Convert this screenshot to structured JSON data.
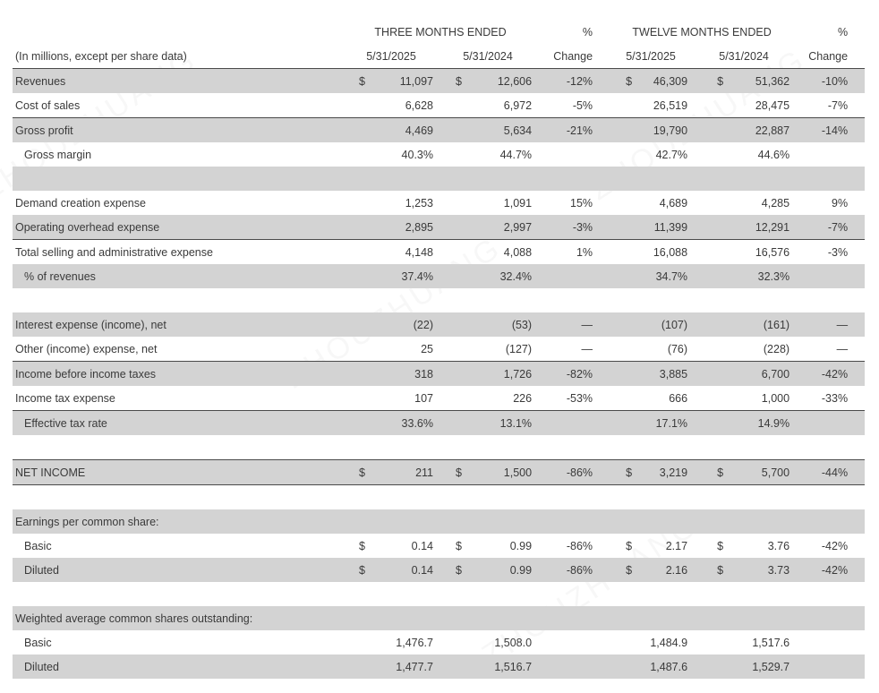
{
  "watermark": "ZHOUZHUANG",
  "colors": {
    "row_shade": "#d3d3d3",
    "rule": "#4a4a4a",
    "text": "#3a3a3a"
  },
  "table": {
    "unit_note": "(In millions, except per share data)",
    "three_months_header": "THREE MONTHS ENDED",
    "twelve_months_header": "TWELVE MONTHS ENDED",
    "pct_header": "%",
    "change_header": "Change",
    "dates": [
      "5/31/2025",
      "5/31/2024",
      "5/31/2025",
      "5/31/2024"
    ],
    "rows": [
      {
        "label": "Revenues",
        "shade": true,
        "cells": [
          "$",
          "11,097",
          "$",
          "12,606",
          "-12%",
          "$",
          "46,309",
          "$",
          "51,362",
          "-10%"
        ]
      },
      {
        "label": "Cost of sales",
        "bottom": true,
        "cells": [
          "",
          "6,628",
          "",
          "6,972",
          "-5%",
          "",
          "26,519",
          "",
          "28,475",
          "-7%"
        ]
      },
      {
        "label": "Gross profit",
        "shade": true,
        "cells": [
          "",
          "4,469",
          "",
          "5,634",
          "-21%",
          "",
          "19,790",
          "",
          "22,887",
          "-14%"
        ]
      },
      {
        "label": "Gross margin",
        "indent": true,
        "cells": [
          "",
          "40.3%",
          "",
          "44.7%",
          "",
          "",
          "42.7%",
          "",
          "44.6%",
          ""
        ]
      },
      {
        "type": "blank",
        "shade": true
      },
      {
        "label": "Demand creation expense",
        "cells": [
          "",
          "1,253",
          "",
          "1,091",
          "15%",
          "",
          "4,689",
          "",
          "4,285",
          "9%"
        ]
      },
      {
        "label": "Operating overhead expense",
        "shade": true,
        "bottom": true,
        "cells": [
          "",
          "2,895",
          "",
          "2,997",
          "-3%",
          "",
          "11,399",
          "",
          "12,291",
          "-7%"
        ]
      },
      {
        "label": "Total selling and administrative expense",
        "cells": [
          "",
          "4,148",
          "",
          "4,088",
          "1%",
          "",
          "16,088",
          "",
          "16,576",
          "-3%"
        ]
      },
      {
        "label": "% of revenues",
        "indent": true,
        "shade": true,
        "cells": [
          "",
          "37.4%",
          "",
          "32.4%",
          "",
          "",
          "34.7%",
          "",
          "32.3%",
          ""
        ]
      },
      {
        "type": "blank"
      },
      {
        "label": "Interest expense (income), net",
        "shade": true,
        "cells": [
          "",
          "(22)",
          "",
          "(53)",
          "—",
          "",
          "(107)",
          "",
          "(161)",
          "—"
        ]
      },
      {
        "label": "Other (income) expense, net",
        "bottom": true,
        "cells": [
          "",
          "25",
          "",
          "(127)",
          "—",
          "",
          "(76)",
          "",
          "(228)",
          "—"
        ]
      },
      {
        "label": "Income before income taxes",
        "shade": true,
        "cells": [
          "",
          "318",
          "",
          "1,726",
          "-82%",
          "",
          "3,885",
          "",
          "6,700",
          "-42%"
        ]
      },
      {
        "label": "Income tax expense",
        "bottom": true,
        "cells": [
          "",
          "107",
          "",
          "226",
          "-53%",
          "",
          "666",
          "",
          "1,000",
          "-33%"
        ]
      },
      {
        "label": "Effective tax rate",
        "indent": true,
        "shade": true,
        "cells": [
          "",
          "33.6%",
          "",
          "13.1%",
          "",
          "",
          "17.1%",
          "",
          "14.9%",
          ""
        ]
      },
      {
        "type": "blank"
      },
      {
        "label": "NET INCOME",
        "shade": true,
        "top": true,
        "bottom": true,
        "cells": [
          "$",
          "211",
          "$",
          "1,500",
          "-86%",
          "$",
          "3,219",
          "$",
          "5,700",
          "-44%"
        ]
      },
      {
        "type": "blank"
      },
      {
        "type": "section",
        "label": "Earnings per common share:",
        "shade": true
      },
      {
        "label": "Basic",
        "indent": true,
        "cells": [
          "$",
          "0.14",
          "$",
          "0.99",
          "-86%",
          "$",
          "2.17",
          "$",
          "3.76",
          "-42%"
        ]
      },
      {
        "label": "Diluted",
        "indent": true,
        "shade": true,
        "cells": [
          "$",
          "0.14",
          "$",
          "0.99",
          "-86%",
          "$",
          "2.16",
          "$",
          "3.73",
          "-42%"
        ]
      },
      {
        "type": "blank"
      },
      {
        "type": "section",
        "label": "Weighted average common shares outstanding:",
        "shade": true
      },
      {
        "label": "Basic",
        "indent": true,
        "cells": [
          "",
          "1,476.7",
          "",
          "1,508.0",
          "",
          "",
          "1,484.9",
          "",
          "1,517.6",
          ""
        ]
      },
      {
        "label": "Diluted",
        "indent": true,
        "shade": true,
        "cells": [
          "",
          "1,477.7",
          "",
          "1,516.7",
          "",
          "",
          "1,487.6",
          "",
          "1,529.7",
          ""
        ]
      }
    ]
  }
}
